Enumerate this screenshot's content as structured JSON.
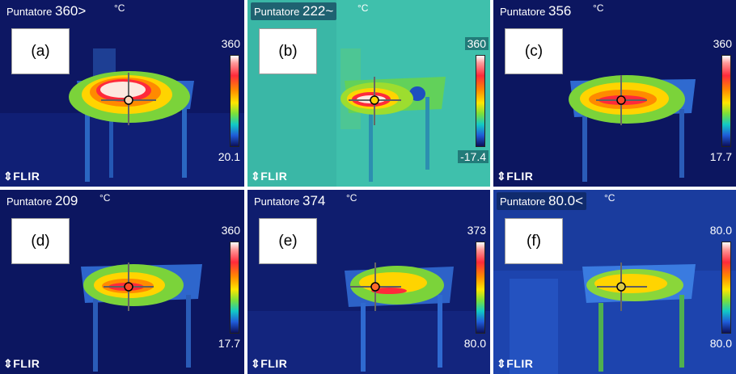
{
  "panels": [
    {
      "label": "(a)",
      "readout_label": "Puntatore",
      "readout_value": "360>",
      "unit": "°C",
      "scale_max": "360",
      "scale_min": "20.1",
      "brand": "FLIR"
    },
    {
      "label": "(b)",
      "readout_label": "Puntatore",
      "readout_value": "222~",
      "unit": "°C",
      "scale_max": "360",
      "scale_min": "-17.4",
      "brand": "FLIR"
    },
    {
      "label": "(c)",
      "readout_label": "Puntatore",
      "readout_value": "356",
      "unit": "°C",
      "scale_max": "360",
      "scale_min": "17.7",
      "brand": "FLIR"
    },
    {
      "label": "(d)",
      "readout_label": "Puntatore",
      "readout_value": "209",
      "unit": "°C",
      "scale_max": "360",
      "scale_min": "17.7",
      "brand": "FLIR"
    },
    {
      "label": "(e)",
      "readout_label": "Puntatore",
      "readout_value": "374",
      "unit": "°C",
      "scale_max": "373",
      "scale_min": "80.0",
      "brand": "FLIR"
    },
    {
      "label": "(f)",
      "readout_label": "Puntatore",
      "readout_value": "80.0<",
      "unit": "°C",
      "scale_max": "80.0",
      "scale_min": "80.0",
      "brand": "FLIR"
    }
  ],
  "colors": {
    "palette": "iron-rainbow",
    "frame_border": "#ffffff",
    "crosshair": "#000000"
  }
}
